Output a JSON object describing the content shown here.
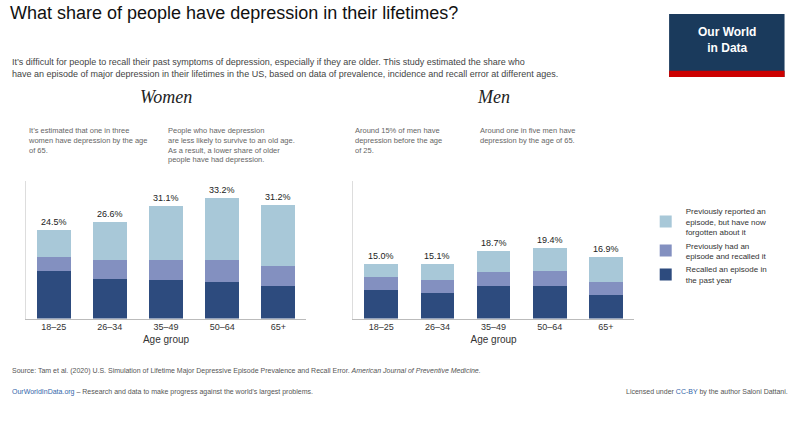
{
  "title": "What share of people have depression in their lifetimes?",
  "subtitle": "It’s difficult for people to recall their past symptoms of depression, especially if they are older. This study estimated the share who\nhave an episode of major depression in their lifetimes in the US, based on data of prevalence, incidence and recall error at different ages.",
  "logo": "Our World\nin Data",
  "source": [
    "Source: Tam et al. (2020) U.S. Simulation of Lifetime Major Depressive Episode Prevalence and Recall Error. ",
    "American Journal of Preventive Medicine."
  ],
  "credit": [
    "OurWorldInData.org",
    " – Research and data to make progress against the world’s largest problems."
  ],
  "license": [
    "Licensed under ",
    "CC-BY",
    " by the author Saloni Dattani."
  ],
  "chart_data": [
    {
      "type": "bar",
      "title": "Women",
      "stacked": true,
      "categories": [
        "18–25",
        "26–34",
        "35–49",
        "50–64",
        "65+"
      ],
      "xlabel": "Age group",
      "ylim": [
        0,
        38
      ],
      "tick_labels": "x",
      "grid": false,
      "legend": "right",
      "series": [
        {
          "name": "Recalled an episode in\nthe past year",
          "color": "#2d4b7e",
          "values": [
            13.0,
            11.0,
            10.5,
            10.0,
            9.0
          ]
        },
        {
          "name": "Previously had an\nepisode and recalled it",
          "color": "#8390c0",
          "values": [
            4.0,
            5.0,
            5.5,
            6.0,
            5.5
          ]
        },
        {
          "name": "Previously reported an\nepisode, but have now\nforgotten about it",
          "color": "#a8c8d8",
          "values": [
            7.5,
            10.6,
            15.1,
            17.2,
            16.7
          ]
        }
      ],
      "totals": [
        24.5,
        26.6,
        31.1,
        33.2,
        31.2
      ],
      "total_labels": [
        "24.5%",
        "26.6%",
        "31.1%",
        "33.2%",
        "31.2%"
      ],
      "annotations": [
        "It’s estimated that one in three\nwomen have depression by the age\nof 65.",
        "People who have depression\nare less likely to survive to an old age.\nAs a result, a lower share of older\npeople have had depression."
      ]
    },
    {
      "type": "bar",
      "title": "Men",
      "stacked": true,
      "categories": [
        "18–25",
        "26–34",
        "35–49",
        "50–64",
        "65+"
      ],
      "xlabel": "Age group",
      "ylim": [
        0,
        38
      ],
      "tick_labels": "x",
      "grid": false,
      "legend": "right",
      "series": [
        {
          "name": "Recalled an episode in\nthe past year",
          "color": "#2d4b7e",
          "values": [
            8.0,
            7.0,
            9.0,
            9.0,
            6.5
          ]
        },
        {
          "name": "Previously had an\nepisode and recalled it",
          "color": "#8390c0",
          "values": [
            3.5,
            3.5,
            3.8,
            4.2,
            3.5
          ]
        },
        {
          "name": "Previously reported an\nepisode, but have now\nforgotten about it",
          "color": "#a8c8d8",
          "values": [
            3.5,
            4.6,
            5.9,
            6.2,
            6.9
          ]
        }
      ],
      "totals": [
        15.0,
        15.1,
        18.7,
        19.4,
        16.9
      ],
      "total_labels": [
        "15.0%",
        "15.1%",
        "18.7%",
        "19.4%",
        "16.9%"
      ],
      "annotations": [
        "Around 15% of men have\ndepression before the age\nof 25.",
        "Around one in five men have\ndepression by the age of 65."
      ]
    }
  ]
}
